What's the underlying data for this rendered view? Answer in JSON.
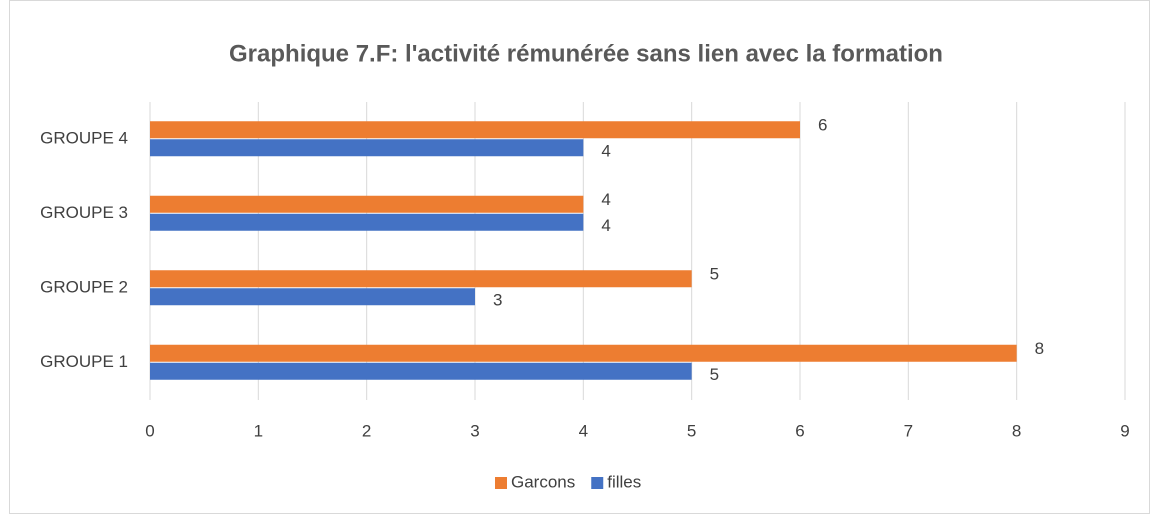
{
  "chart_data": {
    "type": "barh",
    "title": "Graphique 7.F: l'activité rémunérée sans lien avec la formation",
    "categories": [
      "GROUPE 1",
      "GROUPE 2",
      "GROUPE 3",
      "GROUPE 4"
    ],
    "series": [
      {
        "name": "Garcons",
        "color": "#ed7d31",
        "values": [
          8,
          5,
          4,
          6
        ]
      },
      {
        "name": "filles",
        "color": "#4472c4",
        "values": [
          5,
          3,
          4,
          4
        ]
      }
    ],
    "xlim": [
      0,
      9
    ],
    "xticks": [
      0,
      1,
      2,
      3,
      4,
      5,
      6,
      7,
      8,
      9
    ],
    "grid": true,
    "legend": "bottom"
  }
}
